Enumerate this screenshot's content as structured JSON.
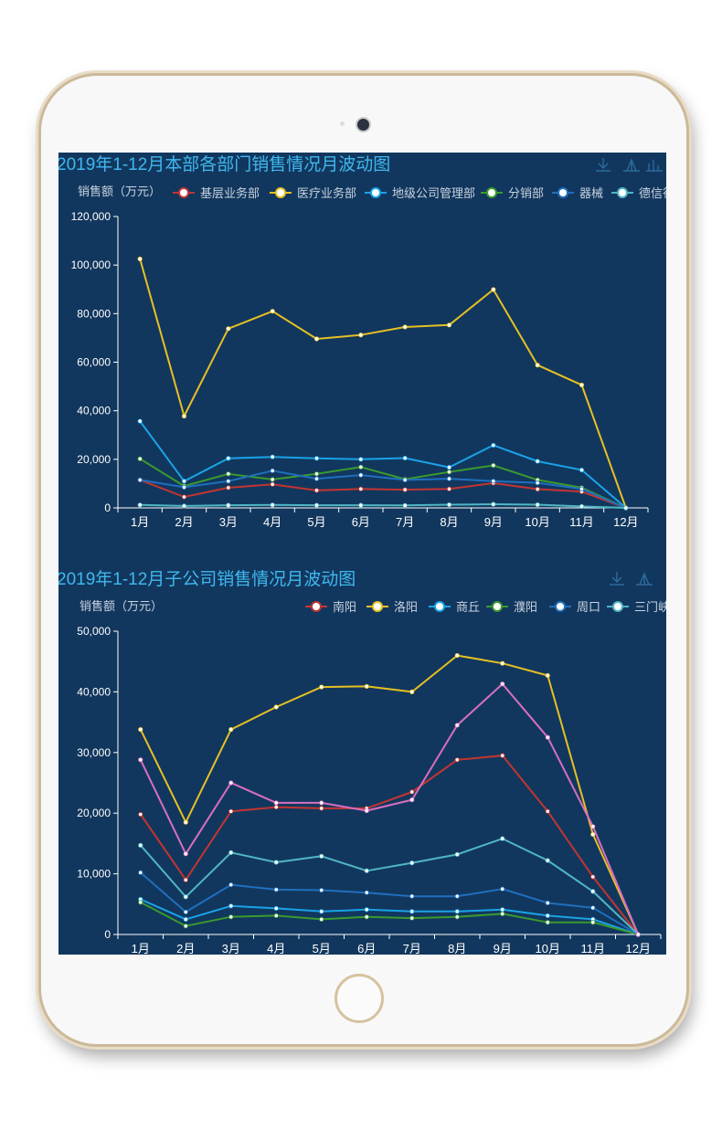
{
  "colors": {
    "screen_bg": "#12375e",
    "title": "#3fb8ef",
    "text": "#c8d3df",
    "axis": "#ffffff"
  },
  "charts": [
    {
      "title": "2019年1-12月本部各部门销售情况月波动图",
      "ylabel": "销售额（万元）",
      "legend": [
        "基层业务部",
        "医疗业务部",
        "地级公司管理部",
        "分销部",
        "器械",
        "德信行"
      ]
    },
    {
      "title": "2019年1-12月子公司销售情况月波动图",
      "ylabel": "销售额（万元）",
      "legend": [
        "南阳",
        "洛阳",
        "商丘",
        "濮阳",
        "周口",
        "三门峡"
      ]
    }
  ],
  "chart_data": [
    {
      "type": "line",
      "title": "2019年1-12月本部各部门销售情况月波动图",
      "ylabel": "销售额（万元）",
      "categories": [
        "1月",
        "2月",
        "3月",
        "4月",
        "5月",
        "6月",
        "7月",
        "8月",
        "9月",
        "10月",
        "11月",
        "12月"
      ],
      "ylim": [
        0,
        120000
      ],
      "yticks": [
        0,
        20000,
        40000,
        60000,
        80000,
        100000,
        120000
      ],
      "ytick_labels": [
        "0",
        "20,000",
        "40,000",
        "60,000",
        "80,000",
        "100,000",
        "120,000"
      ],
      "legend_position": "top",
      "series": [
        {
          "name": "基层业务部",
          "color": "#c23531",
          "values": [
            11500,
            4500,
            8300,
            9700,
            7200,
            7800,
            7500,
            7800,
            10200,
            7700,
            6700,
            0
          ]
        },
        {
          "name": "医疗业务部",
          "color": "#e6c023",
          "values": [
            102500,
            37800,
            73800,
            81000,
            69600,
            71200,
            74500,
            75300,
            89900,
            58800,
            50600,
            0
          ]
        },
        {
          "name": "地级公司管理部",
          "color": "#1aa3e8",
          "values": [
            35700,
            11000,
            20400,
            21000,
            20400,
            20000,
            20500,
            16700,
            25800,
            19200,
            15600,
            0
          ]
        },
        {
          "name": "分销部",
          "color": "#3a9a2e",
          "values": [
            20200,
            9000,
            14000,
            11700,
            14000,
            16800,
            11800,
            14800,
            17500,
            11500,
            8300,
            0
          ]
        },
        {
          "name": "器械",
          "color": "#1f6fbf",
          "values": [
            11500,
            8500,
            11000,
            15300,
            12000,
            13500,
            11500,
            12000,
            11000,
            10300,
            7800,
            0
          ]
        },
        {
          "name": "德信行",
          "color": "#4fb7c4",
          "values": [
            1200,
            800,
            1100,
            1200,
            1100,
            1100,
            1000,
            1300,
            1500,
            1300,
            600,
            0
          ]
        }
      ]
    },
    {
      "type": "line",
      "title": "2019年1-12月子公司销售情况月波动图",
      "ylabel": "销售额（万元）",
      "categories": [
        "1月",
        "2月",
        "3月",
        "4月",
        "5月",
        "6月",
        "7月",
        "8月",
        "9月",
        "10月",
        "11月",
        "12月"
      ],
      "ylim": [
        0,
        50000
      ],
      "yticks": [
        0,
        10000,
        20000,
        30000,
        40000,
        50000
      ],
      "ytick_labels": [
        "0",
        "10,000",
        "20,000",
        "30,000",
        "40,000",
        "50,000"
      ],
      "legend_position": "top-right",
      "series": [
        {
          "name": "南阳",
          "color": "#c23531",
          "values": [
            19800,
            9000,
            20300,
            21000,
            20800,
            20800,
            23500,
            28800,
            29500,
            20300,
            9500,
            0
          ]
        },
        {
          "name": "洛阳",
          "color": "#e6c023",
          "values": [
            33800,
            18500,
            33800,
            37500,
            40800,
            40900,
            40000,
            46000,
            44700,
            42700,
            16500,
            0
          ]
        },
        {
          "name": "商丘",
          "color": "#1aa3e8",
          "values": [
            5800,
            2500,
            4700,
            4300,
            3800,
            4100,
            3800,
            3800,
            4100,
            3100,
            2500,
            0
          ]
        },
        {
          "name": "濮阳",
          "color": "#3a9a2e",
          "values": [
            5300,
            1400,
            2900,
            3100,
            2500,
            2900,
            2700,
            2900,
            3400,
            2000,
            2000,
            0
          ]
        },
        {
          "name": "周口",
          "color": "#1f6fbf",
          "values": [
            10200,
            3700,
            8200,
            7400,
            7300,
            6900,
            6300,
            6300,
            7500,
            5200,
            4400,
            0
          ]
        },
        {
          "name": "三门峡",
          "color": "#4fb7c4",
          "values": [
            14700,
            6200,
            13500,
            11900,
            12900,
            10500,
            11800,
            13200,
            15800,
            12200,
            7100,
            0
          ]
        },
        {
          "name": "",
          "color": "#d86fbf",
          "values": [
            28800,
            13300,
            25000,
            21700,
            21700,
            20400,
            22200,
            34500,
            41300,
            32500,
            17800,
            0
          ]
        }
      ]
    }
  ]
}
